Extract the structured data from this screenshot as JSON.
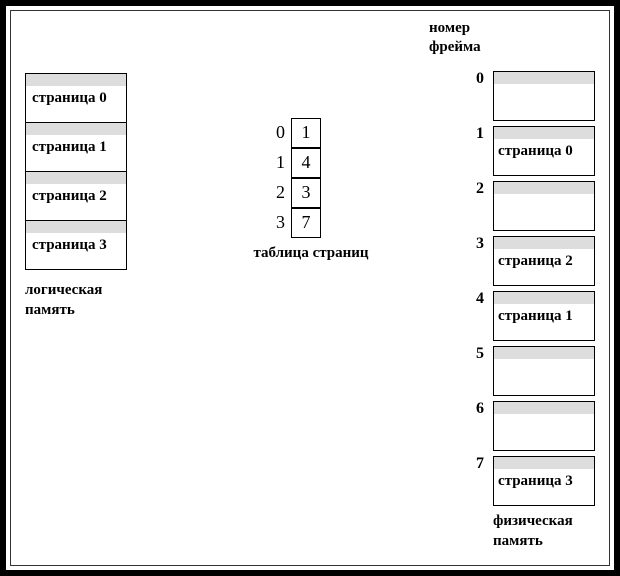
{
  "labels": {
    "frame_number": "номер\nфрейма",
    "logical_memory": "логическая\nпамять",
    "page_table": "таблица страниц",
    "physical_memory": "физическая\nпамять"
  },
  "logical_pages": [
    {
      "label": "страница 0"
    },
    {
      "label": "страница 1"
    },
    {
      "label": "страница 2"
    },
    {
      "label": "страница 3"
    }
  ],
  "page_table": [
    {
      "index": "0",
      "value": "1"
    },
    {
      "index": "1",
      "value": "4"
    },
    {
      "index": "2",
      "value": "3"
    },
    {
      "index": "3",
      "value": "7"
    }
  ],
  "physical_frames": [
    {
      "num": "0",
      "label": ""
    },
    {
      "num": "1",
      "label": "страница 0"
    },
    {
      "num": "2",
      "label": ""
    },
    {
      "num": "3",
      "label": "страница 2"
    },
    {
      "num": "4",
      "label": "страница 1"
    },
    {
      "num": "5",
      "label": ""
    },
    {
      "num": "6",
      "label": ""
    },
    {
      "num": "7",
      "label": "страница 3"
    }
  ],
  "style": {
    "type": "diagram",
    "shade_color": "#dddddd",
    "border_color": "#000000",
    "background": "#ffffff",
    "font_family": "Times New Roman",
    "label_fontsize": 15,
    "cell_fontsize": 18,
    "logical_box_height": 50,
    "physical_box_height": 50,
    "pt_cell_size": 30
  }
}
